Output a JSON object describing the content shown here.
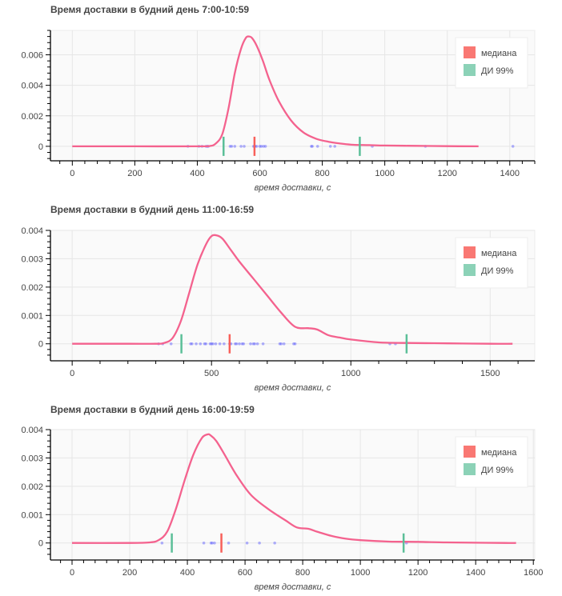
{
  "colors": {
    "kde": "#f4628e",
    "median": "#f8605a",
    "ci": "#5bbf98",
    "points": "#5555ff",
    "grid": "#e6e6e6",
    "plot_bg": "#fafafa"
  },
  "legend": {
    "median_label": "медиана",
    "ci_label": "ДИ 99%"
  },
  "chart_data": [
    {
      "type": "line",
      "title": "Время доставки в будний день 7:00-10:59",
      "xlabel": "время доставки, с",
      "ylabel": "",
      "xlim": [
        -70,
        1480
      ],
      "ylim": [
        -0.00095,
        0.0076
      ],
      "xticks": [
        0,
        200,
        400,
        600,
        800,
        1000,
        1200,
        1400
      ],
      "xtick_labels": [
        "0",
        "200",
        "400",
        "600",
        "800",
        "1000",
        "1200",
        "1400"
      ],
      "yticks": [
        0,
        0.002,
        0.004,
        0.006
      ],
      "ytick_labels": [
        "0",
        "0.002",
        "0.004",
        "0.006"
      ],
      "grid": true,
      "legend_position": "top-right",
      "kde": {
        "x": [
          0,
          200,
          400,
          440,
          460,
          480,
          500,
          520,
          540,
          555,
          565,
          575,
          590,
          610,
          630,
          660,
          700,
          740,
          780,
          820,
          860,
          900,
          950,
          1000,
          1100,
          1200,
          1300
        ],
        "y": [
          0,
          0,
          0,
          2e-05,
          0.0002,
          0.0008,
          0.0025,
          0.0048,
          0.0064,
          0.0071,
          0.0072,
          0.0071,
          0.0066,
          0.0056,
          0.0044,
          0.003,
          0.0017,
          0.0009,
          0.0005,
          0.0003,
          0.00018,
          0.0001,
          8e-05,
          5e-05,
          3e-05,
          1e-05,
          0
        ]
      },
      "points": [
        370,
        405,
        415,
        428,
        432,
        435,
        505,
        510,
        520,
        540,
        550,
        580,
        583,
        585,
        590,
        600,
        605,
        612,
        618,
        765,
        768,
        785,
        826,
        840,
        960,
        1130,
        1410
      ],
      "median": 583,
      "ci": [
        484,
        920
      ]
    },
    {
      "type": "line",
      "title": "Время доставки в будний день 11:00-16:59",
      "xlabel": "время доставки, с",
      "ylabel": "",
      "xlim": [
        -78,
        1660
      ],
      "ylim": [
        -0.0006,
        0.004
      ],
      "xticks": [
        0,
        500,
        1000,
        1500
      ],
      "xtick_labels": [
        "0",
        "500",
        "1000",
        "1500"
      ],
      "yticks": [
        0,
        0.001,
        0.002,
        0.003,
        0.004
      ],
      "ytick_labels": [
        "0",
        "0.001",
        "0.002",
        "0.003",
        "0.004"
      ],
      "grid": true,
      "legend_position": "top-right",
      "kde": {
        "x": [
          0,
          200,
          300,
          330,
          360,
          390,
          420,
          450,
          480,
          500,
          520,
          540,
          570,
          600,
          650,
          700,
          750,
          800,
          850,
          880,
          920,
          960,
          1000,
          1100,
          1200,
          1300,
          1400,
          1500,
          1580
        ],
        "y": [
          0,
          0,
          0,
          3e-05,
          0.0002,
          0.0008,
          0.0018,
          0.0028,
          0.0035,
          0.0038,
          0.00382,
          0.0037,
          0.0033,
          0.0029,
          0.0023,
          0.0017,
          0.0011,
          0.0006,
          0.00055,
          0.0005,
          0.0003,
          0.00022,
          0.00015,
          5e-05,
          3e-05,
          2e-05,
          1e-05,
          0,
          0
        ]
      },
      "points": [
        310,
        325,
        355,
        425,
        430,
        445,
        460,
        475,
        480,
        495,
        500,
        505,
        515,
        530,
        545,
        565,
        570,
        585,
        590,
        600,
        610,
        615,
        640,
        650,
        655,
        665,
        685,
        745,
        750,
        760,
        795,
        800,
        1140,
        1160
      ],
      "median": 565,
      "ci": [
        392,
        1200
      ]
    },
    {
      "type": "line",
      "title": "Время доставки в будний день 16:00-19:59",
      "xlabel": "время доставки, с",
      "ylabel": "",
      "xlim": [
        -75,
        1605
      ],
      "ylim": [
        -0.0006,
        0.004
      ],
      "xticks": [
        0,
        200,
        400,
        600,
        800,
        1000,
        1200,
        1400,
        1600
      ],
      "xtick_labels": [
        "0",
        "200",
        "400",
        "600",
        "800",
        "1000",
        "1200",
        "1400",
        "1600"
      ],
      "yticks": [
        0,
        0.001,
        0.002,
        0.003,
        0.004
      ],
      "ytick_labels": [
        "0",
        "0.001",
        "0.002",
        "0.003",
        "0.004"
      ],
      "grid": true,
      "legend_position": "top-right",
      "kde": {
        "x": [
          0,
          200,
          270,
          300,
          330,
          360,
          390,
          420,
          450,
          470,
          480,
          500,
          530,
          570,
          620,
          680,
          740,
          780,
          820,
          850,
          900,
          950,
          1000,
          1100,
          1200,
          1300,
          1400,
          1500,
          1540
        ],
        "y": [
          0,
          0,
          2e-05,
          0.0001,
          0.0004,
          0.0012,
          0.0022,
          0.0031,
          0.0037,
          0.00383,
          0.0038,
          0.0036,
          0.0031,
          0.0024,
          0.0017,
          0.0012,
          0.0008,
          0.00055,
          0.0005,
          0.0004,
          0.00025,
          0.00015,
          0.0001,
          5e-05,
          4e-05,
          2e-05,
          1e-05,
          0,
          0
        ]
      },
      "points": [
        312,
        457,
        482,
        486,
        494,
        543,
        607,
        650,
        703,
        1160
      ],
      "median": 518,
      "ci": [
        346,
        1150
      ]
    }
  ]
}
